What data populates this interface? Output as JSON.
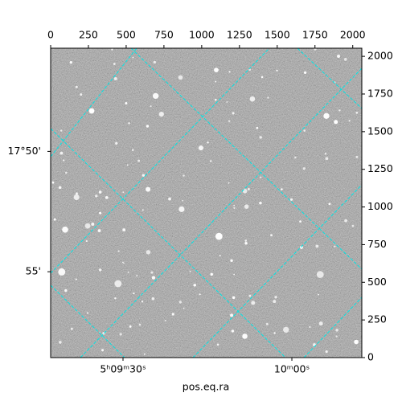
{
  "chart_data": {
    "type": "image",
    "xlabel": "pos.eq.ra",
    "xlim": [
      0,
      2060
    ],
    "ylim": [
      0,
      2054
    ],
    "xticks": [
      0,
      250,
      500,
      750,
      1000,
      1250,
      1500,
      1750,
      2000
    ],
    "yticks": [
      0,
      250,
      500,
      750,
      1000,
      1250,
      1500,
      1750,
      2000
    ],
    "ra_ticks": [
      {
        "value": 479,
        "label": "5ʰ09ᵐ30ˢ"
      },
      {
        "value": 1597,
        "label": "10ᵐ00ˢ"
      }
    ],
    "dec_ticks": [
      {
        "value": 1369,
        "label": "17°50'"
      },
      {
        "value": 570,
        "label": "55'"
      }
    ],
    "grid_color": "#00e5e5"
  }
}
